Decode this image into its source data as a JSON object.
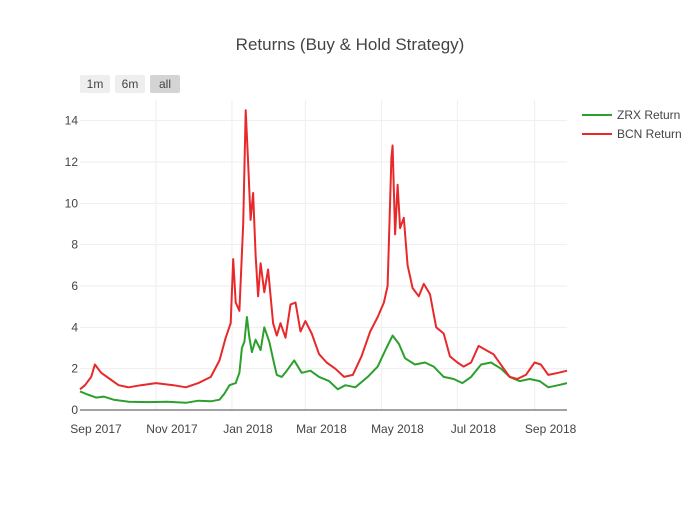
{
  "chart_data": {
    "type": "line",
    "title": "Returns (Buy & Hold Strategy)",
    "xlabel": "",
    "ylabel": "",
    "x_ticks": [
      "Sep 2017",
      "Nov 2017",
      "Jan 2018",
      "Mar 2018",
      "May 2018",
      "Jul 2018",
      "Sep 2018"
    ],
    "y_ticks": [
      0,
      2,
      4,
      6,
      8,
      10,
      12,
      14
    ],
    "xlim": [
      "2017-09-01",
      "2018-09-27"
    ],
    "ylim": [
      0,
      15
    ],
    "grid": true,
    "legend_position": "top-right",
    "range_selector": {
      "buttons": [
        "1m",
        "6m",
        "all"
      ],
      "active": "all"
    },
    "series": [
      {
        "name": "ZRX Return",
        "color": "#2ca02c",
        "points": [
          [
            "2017-09-01",
            0.9
          ],
          [
            "2017-09-07",
            0.75
          ],
          [
            "2017-09-14",
            0.6
          ],
          [
            "2017-09-20",
            0.65
          ],
          [
            "2017-09-28",
            0.5
          ],
          [
            "2017-10-10",
            0.4
          ],
          [
            "2017-10-25",
            0.38
          ],
          [
            "2017-11-10",
            0.4
          ],
          [
            "2017-11-25",
            0.35
          ],
          [
            "2017-12-05",
            0.45
          ],
          [
            "2017-12-15",
            0.42
          ],
          [
            "2017-12-22",
            0.5
          ],
          [
            "2017-12-26",
            0.8
          ],
          [
            "2017-12-30",
            1.2
          ],
          [
            "2018-01-04",
            1.3
          ],
          [
            "2018-01-07",
            1.8
          ],
          [
            "2018-01-09",
            3.0
          ],
          [
            "2018-01-11",
            3.3
          ],
          [
            "2018-01-13",
            4.5
          ],
          [
            "2018-01-15",
            3.5
          ],
          [
            "2018-01-17",
            2.8
          ],
          [
            "2018-01-20",
            3.4
          ],
          [
            "2018-01-24",
            2.9
          ],
          [
            "2018-01-27",
            4.0
          ],
          [
            "2018-01-31",
            3.3
          ],
          [
            "2018-02-04",
            2.2
          ],
          [
            "2018-02-06",
            1.7
          ],
          [
            "2018-02-10",
            1.6
          ],
          [
            "2018-02-14",
            1.9
          ],
          [
            "2018-02-20",
            2.4
          ],
          [
            "2018-02-26",
            1.8
          ],
          [
            "2018-03-05",
            1.9
          ],
          [
            "2018-03-12",
            1.6
          ],
          [
            "2018-03-20",
            1.4
          ],
          [
            "2018-03-27",
            1.0
          ],
          [
            "2018-04-02",
            1.2
          ],
          [
            "2018-04-10",
            1.1
          ],
          [
            "2018-04-20",
            1.6
          ],
          [
            "2018-04-28",
            2.1
          ],
          [
            "2018-05-05",
            3.0
          ],
          [
            "2018-05-10",
            3.6
          ],
          [
            "2018-05-15",
            3.2
          ],
          [
            "2018-05-20",
            2.5
          ],
          [
            "2018-05-28",
            2.2
          ],
          [
            "2018-06-05",
            2.3
          ],
          [
            "2018-06-12",
            2.1
          ],
          [
            "2018-06-20",
            1.6
          ],
          [
            "2018-06-28",
            1.5
          ],
          [
            "2018-07-05",
            1.3
          ],
          [
            "2018-07-12",
            1.6
          ],
          [
            "2018-07-20",
            2.2
          ],
          [
            "2018-07-28",
            2.3
          ],
          [
            "2018-08-05",
            2.0
          ],
          [
            "2018-08-12",
            1.6
          ],
          [
            "2018-08-20",
            1.4
          ],
          [
            "2018-08-28",
            1.5
          ],
          [
            "2018-09-05",
            1.4
          ],
          [
            "2018-09-12",
            1.1
          ],
          [
            "2018-09-20",
            1.2
          ],
          [
            "2018-09-27",
            1.3
          ]
        ]
      },
      {
        "name": "BCN Return",
        "color": "#e8292b",
        "points": [
          [
            "2017-09-01",
            1.0
          ],
          [
            "2017-09-05",
            1.2
          ],
          [
            "2017-09-10",
            1.6
          ],
          [
            "2017-09-13",
            2.2
          ],
          [
            "2017-09-18",
            1.8
          ],
          [
            "2017-09-25",
            1.5
          ],
          [
            "2017-10-02",
            1.2
          ],
          [
            "2017-10-10",
            1.1
          ],
          [
            "2017-10-20",
            1.2
          ],
          [
            "2017-11-01",
            1.3
          ],
          [
            "2017-11-15",
            1.2
          ],
          [
            "2017-11-25",
            1.1
          ],
          [
            "2017-12-05",
            1.3
          ],
          [
            "2017-12-15",
            1.6
          ],
          [
            "2017-12-22",
            2.4
          ],
          [
            "2017-12-27",
            3.5
          ],
          [
            "2017-12-31",
            4.2
          ],
          [
            "2018-01-02",
            7.3
          ],
          [
            "2018-01-04",
            5.2
          ],
          [
            "2018-01-07",
            4.8
          ],
          [
            "2018-01-10",
            9.0
          ],
          [
            "2018-01-12",
            14.5
          ],
          [
            "2018-01-14",
            12.0
          ],
          [
            "2018-01-16",
            9.2
          ],
          [
            "2018-01-18",
            10.5
          ],
          [
            "2018-01-20",
            7.5
          ],
          [
            "2018-01-22",
            5.5
          ],
          [
            "2018-01-24",
            7.1
          ],
          [
            "2018-01-27",
            5.7
          ],
          [
            "2018-01-30",
            6.8
          ],
          [
            "2018-02-03",
            4.2
          ],
          [
            "2018-02-06",
            3.6
          ],
          [
            "2018-02-09",
            4.2
          ],
          [
            "2018-02-13",
            3.5
          ],
          [
            "2018-02-17",
            5.1
          ],
          [
            "2018-02-21",
            5.2
          ],
          [
            "2018-02-25",
            3.8
          ],
          [
            "2018-03-01",
            4.3
          ],
          [
            "2018-03-06",
            3.7
          ],
          [
            "2018-03-12",
            2.7
          ],
          [
            "2018-03-18",
            2.3
          ],
          [
            "2018-03-25",
            2.0
          ],
          [
            "2018-04-01",
            1.6
          ],
          [
            "2018-04-08",
            1.7
          ],
          [
            "2018-04-15",
            2.6
          ],
          [
            "2018-04-22",
            3.8
          ],
          [
            "2018-04-28",
            4.5
          ],
          [
            "2018-05-03",
            5.2
          ],
          [
            "2018-05-06",
            6.0
          ],
          [
            "2018-05-09",
            12.2
          ],
          [
            "2018-05-10",
            12.8
          ],
          [
            "2018-05-12",
            8.5
          ],
          [
            "2018-05-14",
            10.9
          ],
          [
            "2018-05-16",
            8.8
          ],
          [
            "2018-05-19",
            9.3
          ],
          [
            "2018-05-22",
            7.0
          ],
          [
            "2018-05-26",
            5.9
          ],
          [
            "2018-05-31",
            5.5
          ],
          [
            "2018-06-04",
            6.1
          ],
          [
            "2018-06-09",
            5.6
          ],
          [
            "2018-06-14",
            4.0
          ],
          [
            "2018-06-20",
            3.7
          ],
          [
            "2018-06-25",
            2.6
          ],
          [
            "2018-07-01",
            2.3
          ],
          [
            "2018-07-06",
            2.1
          ],
          [
            "2018-07-12",
            2.3
          ],
          [
            "2018-07-18",
            3.1
          ],
          [
            "2018-07-24",
            2.9
          ],
          [
            "2018-07-30",
            2.7
          ],
          [
            "2018-08-06",
            2.1
          ],
          [
            "2018-08-12",
            1.6
          ],
          [
            "2018-08-18",
            1.5
          ],
          [
            "2018-08-25",
            1.7
          ],
          [
            "2018-09-01",
            2.3
          ],
          [
            "2018-09-06",
            2.2
          ],
          [
            "2018-09-12",
            1.7
          ],
          [
            "2018-09-20",
            1.8
          ],
          [
            "2018-09-27",
            1.9
          ]
        ]
      }
    ]
  }
}
